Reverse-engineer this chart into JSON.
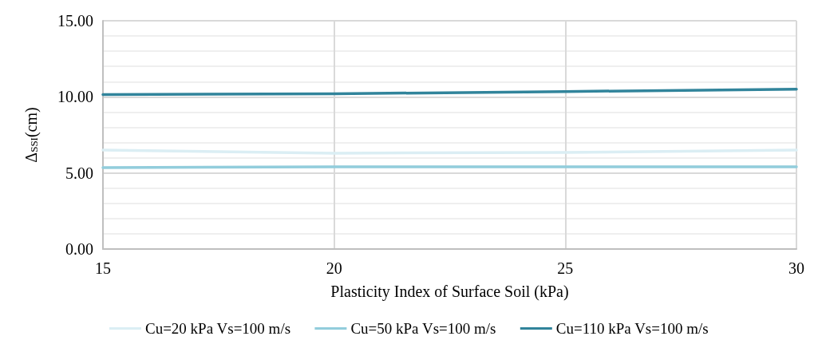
{
  "chart_data": {
    "type": "line",
    "xlabel": "Plasticity Index of Surface Soil (kPa)",
    "ylabel": "Δ$_{SSI}$(cm)",
    "x": [
      15,
      20,
      25,
      30
    ],
    "series": [
      {
        "name": "Cu=20 kPa Vs=100 m/s",
        "color": "#dbeef4",
        "values": [
          6.5,
          6.3,
          6.35,
          6.5
        ]
      },
      {
        "name": "Cu=50 kPa Vs=100 m/s",
        "color": "#92cddc",
        "values": [
          5.35,
          5.4,
          5.4,
          5.4
        ]
      },
      {
        "name": "Cu=110 kPa Vs=100 m/s",
        "color": "#31849b",
        "values": [
          10.15,
          10.2,
          10.35,
          10.5
        ]
      }
    ],
    "xlim": [
      15,
      30
    ],
    "xticks": [
      15,
      20,
      25,
      30
    ],
    "ylim": [
      0,
      15
    ],
    "yticks": [
      {
        "value": 0,
        "label": "0.00"
      },
      {
        "value": 1,
        "label": null
      },
      {
        "value": 2,
        "label": null
      },
      {
        "value": 3,
        "label": null
      },
      {
        "value": 4,
        "label": null
      },
      {
        "value": 5,
        "label": "5.00"
      },
      {
        "value": 6,
        "label": null
      },
      {
        "value": 7,
        "label": null
      },
      {
        "value": 8,
        "label": null
      },
      {
        "value": 9,
        "label": null
      },
      {
        "value": 10,
        "label": "10.00"
      },
      {
        "value": 11,
        "label": null
      },
      {
        "value": 12,
        "label": null
      },
      {
        "value": 13,
        "label": null
      },
      {
        "value": 14,
        "label": null
      },
      {
        "value": 15,
        "label": "15.00"
      }
    ],
    "grid": true,
    "legend": "bottom",
    "marker": "none",
    "line_style": "solid"
  }
}
